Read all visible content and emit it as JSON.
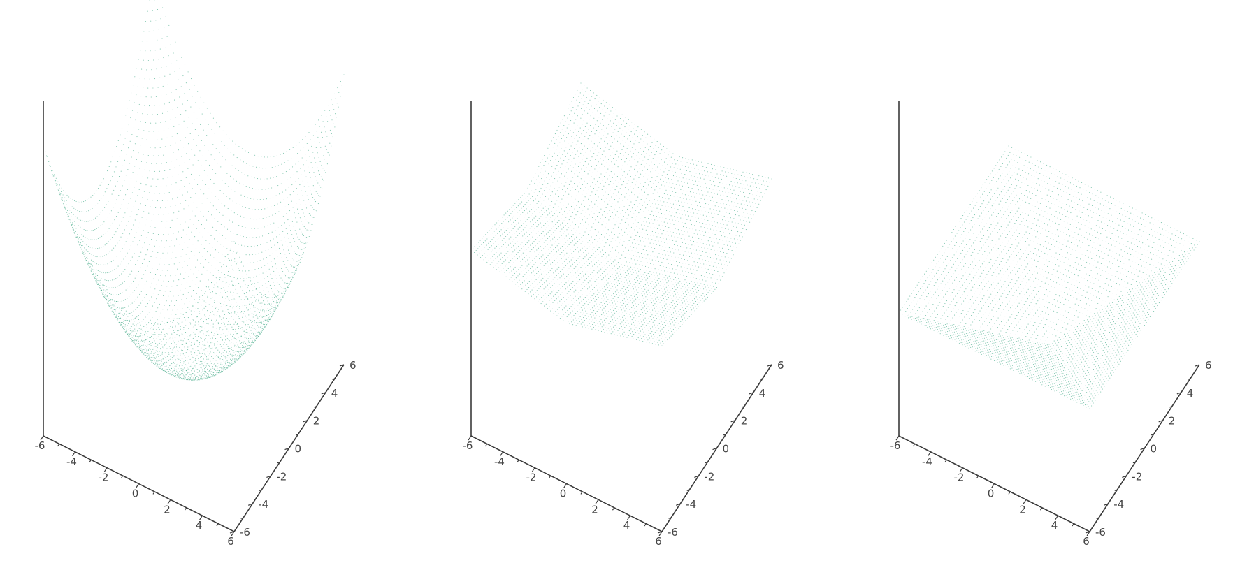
{
  "figure": {
    "dot_color": "#0a8f63",
    "axis_color": "#3a3a3a",
    "tick_color": "#444444"
  },
  "chart_data": [
    {
      "type": "surface-3d",
      "render_style": "point mesh",
      "surface": "z = x^2 + y^2",
      "x": {
        "range": [
          -6,
          6
        ],
        "ticks": [
          -6,
          -4,
          -2,
          0,
          2,
          4,
          6
        ],
        "tick_labels": [
          "-6",
          "-4",
          "-2",
          "0",
          "2",
          "4",
          "6"
        ]
      },
      "y": {
        "range": [
          -6,
          6
        ],
        "ticks": [
          -6,
          -4,
          -2,
          0,
          2,
          4,
          6
        ],
        "tick_labels": [
          "-6",
          "-4",
          "-2",
          "0",
          "2",
          "4",
          "6"
        ]
      },
      "z_axis_labels": "none",
      "grid": false
    },
    {
      "type": "surface-3d",
      "render_style": "point mesh",
      "surface": "z = |x| + |y|",
      "x": {
        "range": [
          -6,
          6
        ],
        "ticks": [
          -6,
          -4,
          -2,
          0,
          2,
          4,
          6
        ],
        "tick_labels": [
          "-6",
          "-4",
          "-2",
          "0",
          "2",
          "4",
          "6"
        ]
      },
      "y": {
        "range": [
          -6,
          6
        ],
        "ticks": [
          -6,
          -4,
          -2,
          0,
          2,
          4,
          6
        ],
        "tick_labels": [
          "-6",
          "-4",
          "-2",
          "0",
          "2",
          "4",
          "6"
        ]
      },
      "z_axis_labels": "none",
      "grid": false
    },
    {
      "type": "surface-3d",
      "render_style": "point mesh",
      "surface": "z = max(|x|, |y|)",
      "x": {
        "range": [
          -6,
          6
        ],
        "ticks": [
          -6,
          -4,
          -2,
          0,
          2,
          4,
          6
        ],
        "tick_labels": [
          "-6",
          "-4",
          "-2",
          "0",
          "2",
          "4",
          "6"
        ]
      },
      "y": {
        "range": [
          -6,
          6
        ],
        "ticks": [
          -6,
          -4,
          -2,
          0,
          2,
          4,
          6
        ],
        "tick_labels": [
          "-6",
          "-4",
          "-2",
          "0",
          "2",
          "4",
          "6"
        ]
      },
      "z_axis_labels": "none",
      "grid": false
    }
  ]
}
